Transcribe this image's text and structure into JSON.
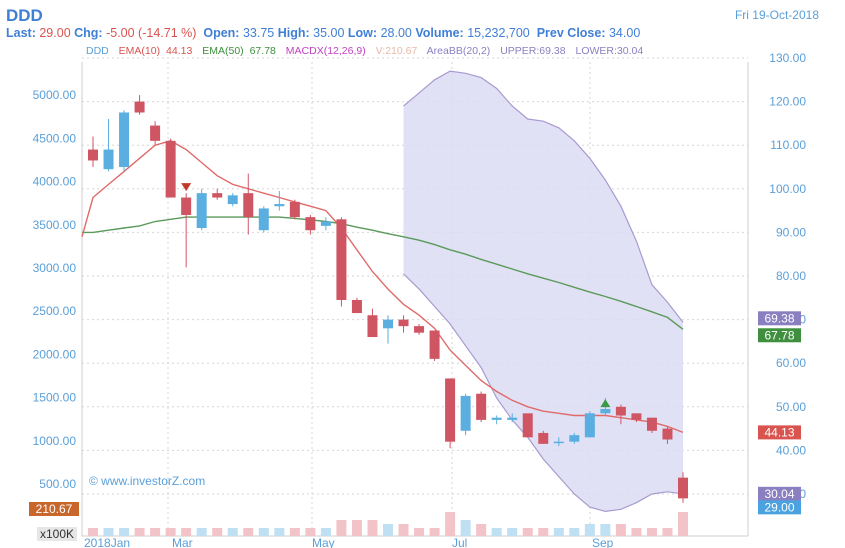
{
  "header": {
    "symbol": "DDD",
    "date": "Fri 19-Oct-2018",
    "last_label": "Last:",
    "last_value": "29.00",
    "chg_label": "Chg:",
    "chg_value": "-5.00 (-14.71 %)",
    "open_label": "Open:",
    "open_value": "33.75",
    "high_label": "High:",
    "high_value": "35.00",
    "low_label": "Low:",
    "low_value": "28.00",
    "volume_label": "Volume:",
    "volume_value": "15,232,700",
    "prevclose_label": "Prev Close:",
    "prevclose_value": "34.00"
  },
  "legend": {
    "ddd": "DDD",
    "ema10": "EMA(10)",
    "ema10_value": "44.13",
    "ema50": "EMA(50)",
    "ema50_value": "67.78",
    "macd": "MACDX(12,26,9)",
    "vol": "V:210.67",
    "bb": "AreaBB(20,2)",
    "upper": "UPPER:69.38",
    "lower": "LOWER:30.04"
  },
  "watermark": "© www.investorZ.com",
  "colors": {
    "up": "#5aaee0",
    "down": "#cf5563",
    "ema10": "#e06a6a",
    "ema50": "#5a9a5a",
    "bb_fill": "#dcdcf3",
    "bb_line": "#a89ad0",
    "axis_text": "#5a9fd8"
  },
  "chart_data": {
    "type": "candlestick",
    "x_labels": [
      "2018Jan",
      "Mar",
      "May",
      "Jul",
      "Sep"
    ],
    "left_axis": {
      "ticks": [
        "500.00",
        "1000.00",
        "1500.00",
        "2000.00",
        "2500.00",
        "3000.00",
        "3500.00",
        "4000.00",
        "4500.00",
        "5000.00"
      ]
    },
    "right_axis": {
      "ylim": [
        20,
        132
      ],
      "ticks": [
        "30.00",
        "40.00",
        "50.00",
        "60.00",
        "70.00",
        "80.00",
        "90.00",
        "100.00",
        "110.00",
        "120.00",
        "130.00"
      ]
    },
    "candles": [
      {
        "o": 109,
        "h": 112,
        "l": 105,
        "c": 106.5
      },
      {
        "o": 104.5,
        "h": 116,
        "l": 104,
        "c": 109
      },
      {
        "o": 105,
        "h": 118,
        "l": 104,
        "c": 117.5
      },
      {
        "o": 120,
        "h": 121.5,
        "l": 117,
        "c": 117.5
      },
      {
        "o": 114.5,
        "h": 115.5,
        "l": 110,
        "c": 111
      },
      {
        "o": 111,
        "h": 111.5,
        "l": 98,
        "c": 98
      },
      {
        "o": 98,
        "h": 99,
        "l": 82,
        "c": 94
      },
      {
        "o": 91,
        "h": 100,
        "l": 90.5,
        "c": 99
      },
      {
        "o": 99,
        "h": 100,
        "l": 97.5,
        "c": 98
      },
      {
        "o": 96.5,
        "h": 99,
        "l": 96,
        "c": 98.5
      },
      {
        "o": 99,
        "h": 103.5,
        "l": 89.5,
        "c": 93.5
      },
      {
        "o": 90.5,
        "h": 96,
        "l": 90,
        "c": 95.5
      },
      {
        "o": 96,
        "h": 99.5,
        "l": 95,
        "c": 96.5
      },
      {
        "o": 97,
        "h": 97.5,
        "l": 93,
        "c": 93.5
      },
      {
        "o": 93.5,
        "h": 94,
        "l": 89.5,
        "c": 90.5
      },
      {
        "o": 91.5,
        "h": 93.5,
        "l": 90.5,
        "c": 92.5
      },
      {
        "o": 93,
        "h": 93.5,
        "l": 73,
        "c": 74.5
      },
      {
        "o": 74.5,
        "h": 75,
        "l": 71.5,
        "c": 71.5
      },
      {
        "o": 71,
        "h": 72.5,
        "l": 66,
        "c": 66
      },
      {
        "o": 68,
        "h": 71,
        "l": 64.5,
        "c": 70
      },
      {
        "o": 70,
        "h": 71,
        "l": 67,
        "c": 68.5
      },
      {
        "o": 68.5,
        "h": 69,
        "l": 66.5,
        "c": 67
      },
      {
        "o": 67.5,
        "h": 67.5,
        "l": 60.5,
        "c": 61
      },
      {
        "o": 56.5,
        "h": 56.5,
        "l": 40.5,
        "c": 42
      },
      {
        "o": 44.5,
        "h": 53,
        "l": 43.5,
        "c": 52.5
      },
      {
        "o": 53,
        "h": 53.5,
        "l": 46.5,
        "c": 47
      },
      {
        "o": 47,
        "h": 48,
        "l": 46,
        "c": 47.5
      },
      {
        "o": 47,
        "h": 48.5,
        "l": 46.5,
        "c": 47.5
      },
      {
        "o": 48.5,
        "h": 48.5,
        "l": 43,
        "c": 43
      },
      {
        "o": 44,
        "h": 44.5,
        "l": 41.5,
        "c": 41.5
      },
      {
        "o": 42,
        "h": 43,
        "l": 41,
        "c": 42
      },
      {
        "o": 42,
        "h": 44,
        "l": 41.5,
        "c": 43.5
      },
      {
        "o": 43,
        "h": 49,
        "l": 43,
        "c": 48.5
      },
      {
        "o": 48.5,
        "h": 52,
        "l": 48,
        "c": 49.5
      },
      {
        "o": 50,
        "h": 50.5,
        "l": 46,
        "c": 48
      },
      {
        "o": 48.5,
        "h": 48.5,
        "l": 46.5,
        "c": 47
      },
      {
        "o": 47.5,
        "h": 47.5,
        "l": 44,
        "c": 44.5
      },
      {
        "o": 45,
        "h": 45.5,
        "l": 41.5,
        "c": 42.5
      },
      {
        "o": 33.75,
        "h": 35,
        "l": 28,
        "c": 29
      }
    ],
    "ema10": [
      98,
      101,
      104,
      107,
      110,
      111,
      109,
      106,
      103,
      101,
      100,
      99,
      98,
      97,
      96,
      95,
      91,
      86,
      81,
      77,
      73.5,
      71,
      68,
      63,
      59.5,
      56,
      53.5,
      51.5,
      50,
      49,
      48.5,
      48,
      48,
      48,
      47.5,
      47,
      46.5,
      45.5,
      44.13
    ],
    "ema50": [
      90,
      90.5,
      91,
      91.5,
      92.5,
      93,
      93.5,
      93.5,
      93.5,
      93.5,
      93.5,
      93.5,
      93.5,
      93.2,
      92.9,
      92.5,
      92,
      91.2,
      90.5,
      89.7,
      89,
      88.2,
      87.2,
      86,
      85,
      83.8,
      82.7,
      81.6,
      80.5,
      79.5,
      78.5,
      77.4,
      76.3,
      75.3,
      74.2,
      73,
      71.8,
      70.5,
      67.78
    ],
    "bb_upper": [
      119,
      122,
      125,
      127,
      126.5,
      125.5,
      123,
      119,
      116,
      115.5,
      114,
      111,
      107,
      102,
      96,
      88,
      78,
      74,
      69.38
    ],
    "bb_lower": [
      80.5,
      77,
      73,
      69,
      64,
      59,
      52,
      47,
      43,
      38,
      34,
      30,
      27,
      26,
      26.5,
      28,
      30,
      30.5,
      30.04
    ],
    "bb_start_index": 20,
    "volume": [
      1,
      1,
      1,
      1,
      1,
      1,
      1,
      1,
      1,
      1,
      1,
      1,
      1,
      1,
      1,
      1,
      2,
      2,
      2,
      1.5,
      1.5,
      1,
      1,
      3,
      2,
      1.5,
      1,
      1,
      1,
      1,
      1,
      1,
      1.5,
      1.5,
      1.5,
      1,
      1,
      1,
      3
    ],
    "markers": [
      {
        "index": 6,
        "type": "down-arrow"
      },
      {
        "index": 33,
        "type": "up-arrow"
      }
    ],
    "badges": [
      {
        "text": "69.38",
        "value": 69.38,
        "color": "#8a7fc0"
      },
      {
        "text": "67.78",
        "value": 67.78,
        "color": "#3f8f3f"
      },
      {
        "text": "44.13",
        "value": 44.13,
        "color": "#d9534f"
      },
      {
        "text": "30.04",
        "value": 30.04,
        "color": "#8a7fc0"
      },
      {
        "text": "29.00",
        "value": 29.0,
        "color": "#4aa3e0"
      }
    ],
    "vol_badge": "210.67",
    "vol_unit": "x100K"
  }
}
